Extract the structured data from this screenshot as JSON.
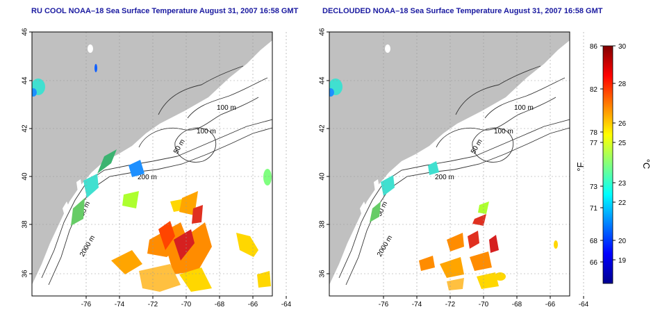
{
  "panels": [
    {
      "title": "RU COOL NOAA–18 Sea Surface Temperature August 31, 2007 16:58 GMT",
      "lon_ticks": [
        "-76",
        "-74",
        "-72",
        "-70",
        "-68",
        "-66",
        "-64"
      ],
      "lat_ticks": [
        "36",
        "38",
        "40",
        "42",
        "44",
        "46"
      ],
      "contour_labels": [
        "100 m",
        "100 m",
        "50 m",
        "200 m",
        "50 m",
        "2000 m"
      ]
    },
    {
      "title": "DECLOUDED NOAA–18 Sea Surface Temperature August 31, 2007 16:58 GMT",
      "lon_ticks": [
        "-76",
        "-74",
        "-72",
        "-70",
        "-68",
        "-66",
        "-64"
      ],
      "lat_ticks": [
        "36",
        "38",
        "40",
        "42",
        "44",
        "46"
      ],
      "contour_labels": [
        "100 m",
        "100 m",
        "50 m",
        "200 m",
        "50 m",
        "2000 m"
      ]
    }
  ],
  "colorbar": {
    "unit_f": "°F",
    "unit_c": "°C",
    "f_ticks": [
      "86",
      "82",
      "78",
      "77",
      "73",
      "71",
      "68",
      "66"
    ],
    "c_ticks": [
      "30",
      "28",
      "26",
      "25",
      "23",
      "22",
      "20",
      "19"
    ],
    "colors": [
      "#00008f",
      "#0000ff",
      "#0080ff",
      "#00ffff",
      "#80ff80",
      "#ffff00",
      "#ff8000",
      "#ff0000",
      "#800000"
    ]
  }
}
